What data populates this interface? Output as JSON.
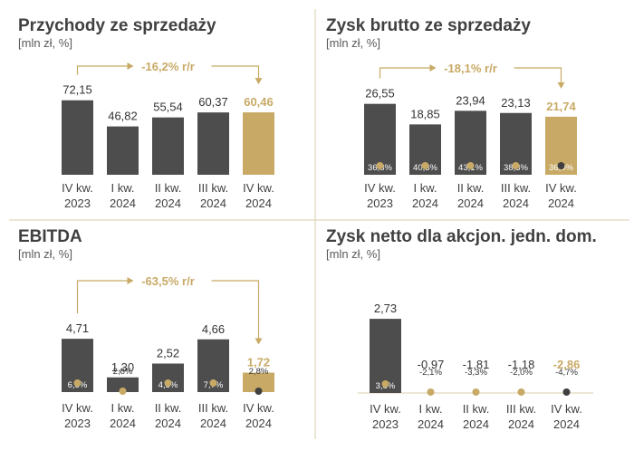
{
  "colors": {
    "bar": "#4d4d4d",
    "highlight": "#c8aa66",
    "marker_light": "#c8aa66",
    "marker_dark": "#3f3f3f",
    "divider": "#d9cfae",
    "title": "#404040"
  },
  "chart_data": [
    {
      "type": "bar",
      "title": "Przychody ze sprzedaży",
      "unit": "[mln zł, %]",
      "categories": [
        [
          "IV kw.",
          "2023"
        ],
        [
          "I kw.",
          "2024"
        ],
        [
          "II kw.",
          "2024"
        ],
        [
          "III kw.",
          "2024"
        ],
        [
          "IV kw.",
          "2024"
        ]
      ],
      "values": [
        72.15,
        46.82,
        55.54,
        60.37,
        60.46
      ],
      "value_labels": [
        "72,15",
        "46,82",
        "55,54",
        "60,37",
        "60,46"
      ],
      "margins": [],
      "highlight_index": 4,
      "change_label": "-16,2% r/r",
      "ylim": [
        0,
        80
      ]
    },
    {
      "type": "bar",
      "title": "Zysk brutto ze sprzedaży",
      "unit": "[mln zł, %]",
      "categories": [
        [
          "IV kw.",
          "2023"
        ],
        [
          "I kw.",
          "2024"
        ],
        [
          "II kw.",
          "2024"
        ],
        [
          "III kw.",
          "2024"
        ],
        [
          "IV kw.",
          "2024"
        ]
      ],
      "values": [
        26.55,
        18.85,
        23.94,
        23.13,
        21.74
      ],
      "value_labels": [
        "26,55",
        "18,85",
        "23,94",
        "23,13",
        "21,74"
      ],
      "margins": [
        "36,8%",
        "40,3%",
        "43,1%",
        "38,3%",
        "36,0%"
      ],
      "margin_values": [
        36.8,
        40.3,
        43.1,
        38.3,
        36.0
      ],
      "highlight_index": 4,
      "change_label": "-18,1% r/r",
      "ylim": [
        0,
        30
      ]
    },
    {
      "type": "bar",
      "title": "EBITDA",
      "unit": "[mln zł, %]",
      "categories": [
        [
          "IV kw.",
          "2023"
        ],
        [
          "I kw.",
          "2024"
        ],
        [
          "II kw.",
          "2024"
        ],
        [
          "III kw.",
          "2024"
        ],
        [
          "IV kw.",
          "2024"
        ]
      ],
      "values": [
        4.71,
        1.3,
        2.52,
        4.66,
        1.72
      ],
      "value_labels": [
        "4,71",
        "1,30",
        "2,52",
        "4,66",
        "1,72"
      ],
      "margins": [
        "6,5%",
        "2,8%",
        "4,5%",
        "7,7%",
        "2,8%"
      ],
      "margin_values": [
        6.5,
        2.8,
        4.5,
        7.7,
        2.8
      ],
      "highlight_index": 4,
      "change_label": "-63,5% r/r",
      "ylim": [
        0,
        5.5
      ]
    },
    {
      "type": "bar",
      "title": "Zysk netto dla akcjon. jedn. dom.",
      "unit": "[mln zł, %]",
      "categories": [
        [
          "IV kw.",
          "2023"
        ],
        [
          "I kw.",
          "2024"
        ],
        [
          "II kw.",
          "2024"
        ],
        [
          "III kw.",
          "2024"
        ],
        [
          "IV kw.",
          "2024"
        ]
      ],
      "values": [
        2.73,
        -0.97,
        -1.81,
        -1.18,
        -2.86
      ],
      "value_labels": [
        "2,73",
        "-0,97",
        "-1,81",
        "-1,18",
        "-2,86"
      ],
      "margins": [
        "3,8%",
        "-2,1%",
        "-3,3%",
        "-2,0%",
        "-4,7%"
      ],
      "margin_values": [
        3.8,
        -2.1,
        -3.3,
        -2.0,
        -4.7
      ],
      "highlight_index": 4,
      "change_label": "",
      "ylim": [
        0,
        3.2
      ]
    }
  ]
}
